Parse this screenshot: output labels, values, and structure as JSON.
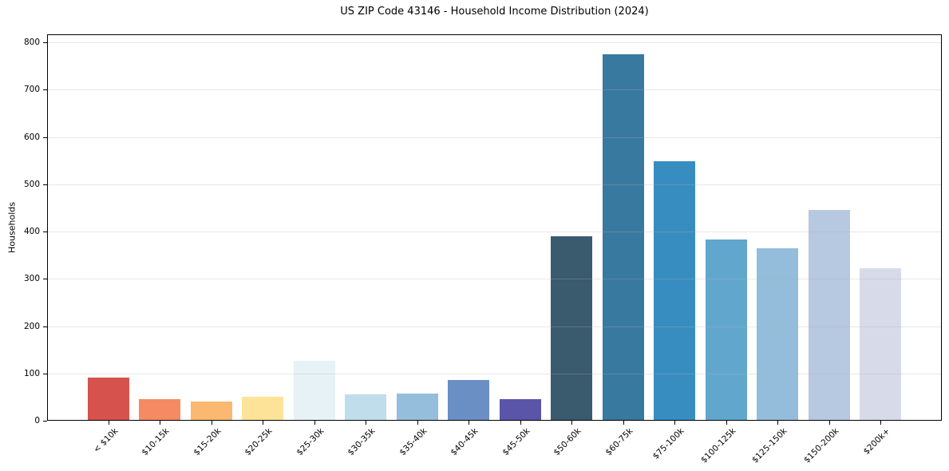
{
  "chart_data": {
    "type": "bar",
    "title": "US ZIP Code 43146 - Household Income Distribution (2024)",
    "xlabel": "",
    "ylabel": "Households",
    "categories": [
      "< $10k",
      "$10-15k",
      "$15-20k",
      "$20-25k",
      "$25-30k",
      "$30-35k",
      "$35-40k",
      "$40-45k",
      "$45-50k",
      "$50-60k",
      "$60-75k",
      "$75-100k",
      "$100-125k",
      "$125-150k",
      "$150-200k",
      "$200k+"
    ],
    "values": [
      92,
      46,
      41,
      51,
      127,
      56,
      58,
      86,
      46,
      390,
      775,
      549,
      383,
      365,
      446,
      322
    ],
    "bar_colors": [
      "#d6524d",
      "#f58a63",
      "#fab870",
      "#fce398",
      "#e7f2f6",
      "#c0ddec",
      "#95bedc",
      "#6a8fc4",
      "#5b55a9",
      "#3a5a6e",
      "#38799f",
      "#388dc0",
      "#61a7cd",
      "#94bddb",
      "#b7c9e0",
      "#d7dbe9"
    ],
    "ylim": [
      0,
      817
    ],
    "yticks": [
      0,
      100,
      200,
      300,
      400,
      500,
      600,
      700,
      800
    ],
    "grid": "horizontal",
    "grid_color": "#b0b0b0",
    "legend": "none",
    "plot_background": "#ffffff",
    "spine_color": "#000000",
    "text_color": "#000000",
    "x_tick_rotation_deg": 45
  }
}
